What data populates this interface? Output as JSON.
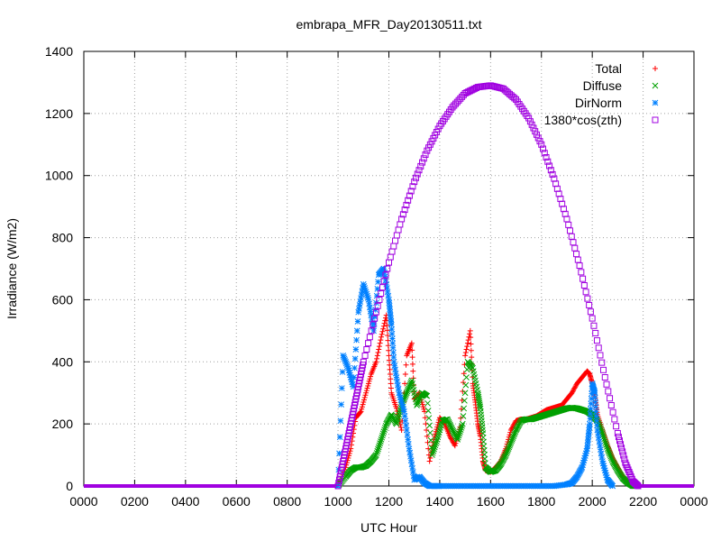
{
  "chart_data": {
    "type": "scatter",
    "title": "embrapa_MFR_Day20130511.txt",
    "xlabel": "UTC Hour",
    "ylabel": "Irradiance (W/m2)",
    "xlim": [
      0,
      24
    ],
    "ylim": [
      0,
      1400
    ],
    "grid": true,
    "legend_position": "top-right",
    "x_ticks": [
      0,
      2,
      4,
      6,
      8,
      10,
      12,
      14,
      16,
      18,
      20,
      22,
      24
    ],
    "x_tick_labels": [
      "0000",
      "0200",
      "0400",
      "0600",
      "0800",
      "1000",
      "1200",
      "1400",
      "1600",
      "1800",
      "2000",
      "2200",
      "0000"
    ],
    "y_ticks": [
      0,
      200,
      400,
      600,
      800,
      1000,
      1200,
      1400
    ],
    "y_tick_labels": [
      "0",
      "200",
      "400",
      "600",
      "800",
      "1000",
      "1200",
      "1400"
    ],
    "series": [
      {
        "name": "Total",
        "marker": "plus",
        "color": "#ff0000",
        "x": [
          10.0,
          10.3,
          10.5,
          10.7,
          10.9,
          11.1,
          11.3,
          11.5,
          11.7,
          11.9,
          12.0,
          12.1,
          12.3,
          12.5,
          12.7,
          12.9,
          13.0,
          13.2,
          13.4,
          13.6,
          13.8,
          14.0,
          14.2,
          14.4,
          14.6,
          14.8,
          15.0,
          15.2,
          15.3,
          15.4,
          15.5,
          15.6,
          15.7,
          15.8,
          16.0,
          16.2,
          16.4,
          16.6,
          16.8,
          17.0,
          17.2,
          17.4,
          17.6,
          17.8,
          18.0,
          18.2,
          18.4,
          18.6,
          18.8,
          19.0,
          19.2,
          19.4,
          19.6,
          19.8,
          19.9,
          20.0,
          20.1,
          20.2,
          20.4,
          20.6,
          20.8,
          21.0,
          21.2,
          21.4,
          21.6,
          21.8
        ],
        "y": [
          0,
          60,
          120,
          220,
          240,
          300,
          360,
          400,
          480,
          550,
          420,
          300,
          250,
          180,
          420,
          460,
          280,
          300,
          240,
          80,
          160,
          220,
          200,
          160,
          130,
          190,
          420,
          500,
          330,
          270,
          200,
          160,
          80,
          50,
          45,
          60,
          80,
          120,
          180,
          210,
          215,
          215,
          220,
          225,
          235,
          245,
          250,
          255,
          260,
          280,
          300,
          330,
          350,
          370,
          360,
          330,
          290,
          230,
          180,
          130,
          90,
          60,
          30,
          10,
          0,
          0
        ]
      },
      {
        "name": "Diffuse",
        "marker": "cross",
        "color": "#00a000",
        "x": [
          10.0,
          10.3,
          10.5,
          10.7,
          10.9,
          11.1,
          11.3,
          11.5,
          11.7,
          11.9,
          12.1,
          12.3,
          12.5,
          12.7,
          12.9,
          13.1,
          13.3,
          13.5,
          13.7,
          13.9,
          14.1,
          14.3,
          14.5,
          14.7,
          14.9,
          15.1,
          15.3,
          15.5,
          15.6,
          15.7,
          15.8,
          16.0,
          16.2,
          16.4,
          16.6,
          16.8,
          17.0,
          17.2,
          17.4,
          17.6,
          17.8,
          18.0,
          18.2,
          18.4,
          18.6,
          18.8,
          19.0,
          19.2,
          19.4,
          19.6,
          19.8,
          20.0,
          20.2,
          20.4,
          20.6,
          20.8,
          21.0,
          21.2,
          21.4,
          21.6,
          21.8
        ],
        "y": [
          0,
          30,
          50,
          60,
          60,
          65,
          80,
          100,
          150,
          200,
          230,
          200,
          260,
          300,
          340,
          260,
          300,
          290,
          100,
          150,
          210,
          215,
          180,
          150,
          200,
          400,
          380,
          300,
          250,
          170,
          60,
          45,
          50,
          70,
          100,
          140,
          180,
          210,
          215,
          215,
          220,
          225,
          230,
          235,
          240,
          245,
          250,
          252,
          250,
          245,
          240,
          230,
          210,
          170,
          120,
          80,
          50,
          25,
          10,
          0,
          0
        ]
      },
      {
        "name": "DirNorm",
        "marker": "star",
        "color": "#0080ff",
        "x": [
          10.0,
          10.2,
          10.4,
          10.6,
          10.8,
          11.0,
          11.2,
          11.4,
          11.6,
          11.8,
          12.0,
          12.1,
          12.2,
          12.4,
          12.6,
          12.8,
          13.0,
          13.2,
          13.4,
          13.6,
          13.8,
          14.0,
          14.5,
          15.0,
          15.5,
          16.0,
          16.5,
          17.0,
          17.5,
          18.0,
          18.5,
          19.0,
          19.2,
          19.4,
          19.6,
          19.8,
          19.9,
          20.0,
          20.1,
          20.2,
          20.4,
          20.6,
          20.8
        ],
        "y": [
          0,
          420,
          380,
          320,
          560,
          650,
          600,
          500,
          680,
          700,
          600,
          520,
          400,
          300,
          240,
          120,
          20,
          30,
          10,
          0,
          0,
          0,
          0,
          0,
          0,
          0,
          0,
          0,
          0,
          0,
          0,
          5,
          10,
          30,
          60,
          120,
          200,
          330,
          300,
          180,
          80,
          20,
          0
        ]
      },
      {
        "name": "1380*cos(zth)",
        "marker": "open-square",
        "color": "#a000e0",
        "x": [
          10.0,
          10.2,
          10.4,
          10.6,
          10.8,
          11.0,
          11.5,
          12.0,
          12.5,
          13.0,
          13.5,
          14.0,
          14.5,
          15.0,
          15.5,
          16.0,
          16.5,
          17.0,
          17.5,
          18.0,
          18.5,
          19.0,
          19.5,
          20.0,
          20.5,
          21.0,
          21.3,
          21.6,
          21.8
        ],
        "y": [
          0,
          80,
          160,
          240,
          320,
          400,
          560,
          720,
          860,
          980,
          1080,
          1160,
          1220,
          1265,
          1285,
          1290,
          1280,
          1245,
          1185,
          1100,
          990,
          860,
          710,
          540,
          350,
          170,
          75,
          15,
          0
        ]
      }
    ],
    "baseline": {
      "y": 0,
      "x_ranges": [
        [
          0,
          10.0
        ],
        [
          21.8,
          24
        ]
      ]
    }
  }
}
